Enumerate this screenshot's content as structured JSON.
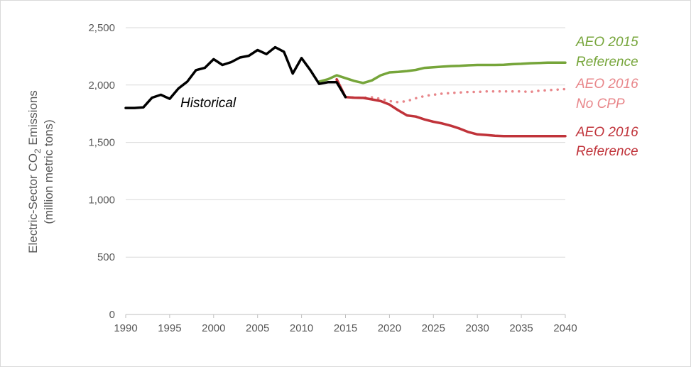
{
  "chart_data": {
    "type": "line",
    "ylabel_line1_prefix": "Electric-Sector CO",
    "ylabel_line1_sub": "2",
    "ylabel_line1_suffix": " Emissions",
    "ylabel_line2": "(million metric tons)",
    "xlim": [
      1990,
      2040
    ],
    "ylim": [
      0,
      2500
    ],
    "x_ticks": [
      "1990",
      "1995",
      "2000",
      "2005",
      "2010",
      "2015",
      "2020",
      "2025",
      "2030",
      "2035",
      "2040"
    ],
    "y_ticks": [
      "0",
      "500",
      "1,000",
      "1,500",
      "2,000",
      "2,500"
    ],
    "gridlines": "horizontal",
    "series": [
      {
        "key": "historical",
        "label": "Historical",
        "color": "#000000",
        "style": "solid",
        "points": [
          [
            1990,
            1800
          ],
          [
            1991,
            1800
          ],
          [
            1992,
            1805
          ],
          [
            1993,
            1890
          ],
          [
            1994,
            1915
          ],
          [
            1995,
            1880
          ],
          [
            1996,
            1970
          ],
          [
            1997,
            2030
          ],
          [
            1998,
            2130
          ],
          [
            1999,
            2150
          ],
          [
            2000,
            2225
          ],
          [
            2001,
            2175
          ],
          [
            2002,
            2200
          ],
          [
            2003,
            2240
          ],
          [
            2004,
            2255
          ],
          [
            2005,
            2305
          ],
          [
            2006,
            2270
          ],
          [
            2007,
            2330
          ],
          [
            2008,
            2290
          ],
          [
            2009,
            2100
          ],
          [
            2010,
            2235
          ],
          [
            2011,
            2130
          ],
          [
            2012,
            2010
          ],
          [
            2013,
            2025
          ],
          [
            2014,
            2025
          ],
          [
            2015,
            1895
          ]
        ]
      },
      {
        "key": "aeo2015",
        "label_line1": "AEO 2015",
        "label_line2": "Reference",
        "color": "#76a53a",
        "style": "solid",
        "points": [
          [
            2012,
            2030
          ],
          [
            2013,
            2050
          ],
          [
            2014,
            2085
          ],
          [
            2015,
            2060
          ],
          [
            2016,
            2035
          ],
          [
            2017,
            2018
          ],
          [
            2018,
            2040
          ],
          [
            2019,
            2085
          ],
          [
            2020,
            2110
          ],
          [
            2021,
            2115
          ],
          [
            2022,
            2122
          ],
          [
            2023,
            2132
          ],
          [
            2024,
            2150
          ],
          [
            2025,
            2155
          ],
          [
            2026,
            2160
          ],
          [
            2027,
            2165
          ],
          [
            2028,
            2168
          ],
          [
            2029,
            2172
          ],
          [
            2030,
            2175
          ],
          [
            2031,
            2175
          ],
          [
            2032,
            2175
          ],
          [
            2033,
            2177
          ],
          [
            2034,
            2182
          ],
          [
            2035,
            2185
          ],
          [
            2036,
            2190
          ],
          [
            2037,
            2192
          ],
          [
            2038,
            2195
          ],
          [
            2039,
            2195
          ],
          [
            2040,
            2195
          ]
        ]
      },
      {
        "key": "aeo2016nocpp",
        "label_line1": "AEO 2016",
        "label_line2": "No CPP",
        "color": "#e8868a",
        "style": "dotted",
        "points": [
          [
            2014,
            2040
          ],
          [
            2015,
            1895
          ],
          [
            2016,
            1890
          ],
          [
            2017,
            1890
          ],
          [
            2018,
            1893
          ],
          [
            2019,
            1880
          ],
          [
            2020,
            1860
          ],
          [
            2021,
            1850
          ],
          [
            2022,
            1860
          ],
          [
            2023,
            1885
          ],
          [
            2024,
            1905
          ],
          [
            2025,
            1915
          ],
          [
            2026,
            1925
          ],
          [
            2027,
            1930
          ],
          [
            2028,
            1935
          ],
          [
            2029,
            1940
          ],
          [
            2030,
            1940
          ],
          [
            2031,
            1945
          ],
          [
            2032,
            1945
          ],
          [
            2033,
            1945
          ],
          [
            2034,
            1945
          ],
          [
            2035,
            1945
          ],
          [
            2036,
            1940
          ],
          [
            2037,
            1950
          ],
          [
            2038,
            1955
          ],
          [
            2039,
            1960
          ],
          [
            2040,
            1965
          ]
        ]
      },
      {
        "key": "aeo2016ref",
        "label_line1": "AEO 2016",
        "label_line2": "Reference",
        "color": "#c0333a",
        "style": "solid",
        "points": [
          [
            2014,
            2050
          ],
          [
            2015,
            1895
          ],
          [
            2016,
            1890
          ],
          [
            2017,
            1888
          ],
          [
            2018,
            1875
          ],
          [
            2019,
            1860
          ],
          [
            2020,
            1830
          ],
          [
            2021,
            1780
          ],
          [
            2022,
            1735
          ],
          [
            2023,
            1725
          ],
          [
            2024,
            1700
          ],
          [
            2025,
            1680
          ],
          [
            2026,
            1665
          ],
          [
            2027,
            1645
          ],
          [
            2028,
            1620
          ],
          [
            2029,
            1590
          ],
          [
            2030,
            1570
          ],
          [
            2031,
            1565
          ],
          [
            2032,
            1558
          ],
          [
            2033,
            1555
          ],
          [
            2034,
            1555
          ],
          [
            2035,
            1555
          ],
          [
            2036,
            1555
          ],
          [
            2037,
            1555
          ],
          [
            2038,
            1555
          ],
          [
            2039,
            1555
          ],
          [
            2040,
            1555
          ]
        ]
      }
    ]
  }
}
